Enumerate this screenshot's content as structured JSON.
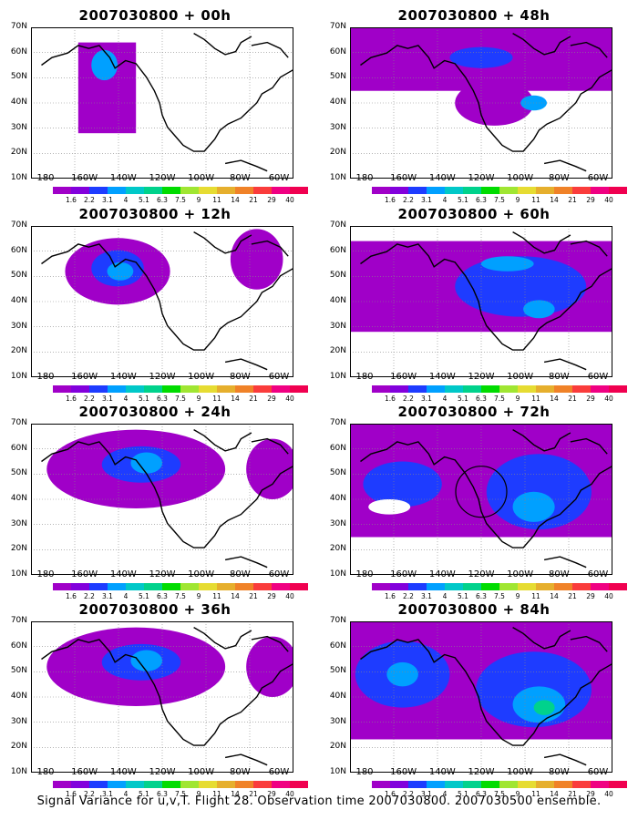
{
  "panels": [
    {
      "title": "2007030800 + 00h",
      "level": 0
    },
    {
      "title": "2007030800 + 48h",
      "level": 3
    },
    {
      "title": "2007030800 + 12h",
      "level": 1
    },
    {
      "title": "2007030800 + 60h",
      "level": 4
    },
    {
      "title": "2007030800 + 24h",
      "level": 2
    },
    {
      "title": "2007030800 + 72h",
      "level": 5
    },
    {
      "title": "2007030800 + 36h",
      "level": 2
    },
    {
      "title": "2007030800 + 84h",
      "level": 6
    }
  ],
  "lat_labels": [
    "70N",
    "60N",
    "50N",
    "40N",
    "30N",
    "20N",
    "10N"
  ],
  "lon_labels": [
    "180",
    "160W",
    "140W",
    "120W",
    "100W",
    "80W",
    "60W"
  ],
  "colorbar": {
    "labels": [
      "1.6",
      "2.2",
      "3.1",
      "4",
      "5.1",
      "6.3",
      "7.5",
      "9",
      "11",
      "14",
      "21",
      "29",
      "40"
    ],
    "colors": [
      "#a000c8",
      "#8200dc",
      "#1e3cff",
      "#00a0ff",
      "#00c8c8",
      "#00d28c",
      "#00dc00",
      "#a0e632",
      "#e6dc32",
      "#e6af2d",
      "#f08228",
      "#fa3c3c",
      "#f00082"
    ]
  },
  "caption": "Signal Variance for u,v,T. Flight 28. Observation time 2007030800. 2007030500 ensemble."
}
